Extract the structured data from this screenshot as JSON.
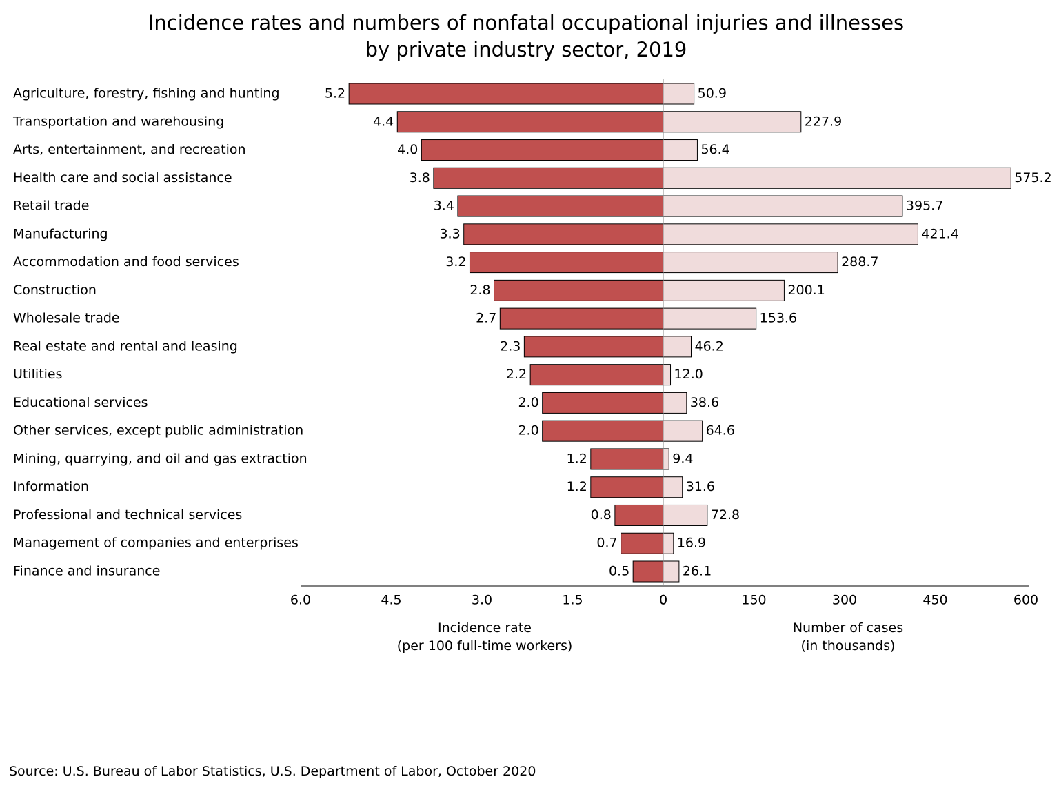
{
  "chart_data": {
    "type": "bar",
    "orientation": "horizontal",
    "title": "Incidence rates and numbers of nonfatal occupational injuries and illnesses\nby private industry sector, 2019",
    "categories": [
      "Agriculture, forestry, fishing and hunting",
      "Transportation and warehousing",
      "Arts, entertainment, and recreation",
      "Health care and social assistance",
      "Retail trade",
      "Manufacturing",
      "Accommodation and food services",
      "Construction",
      "Wholesale trade",
      "Real estate and rental and leasing",
      "Utilities",
      "Educational services",
      "Other services, except public administration",
      "Mining, quarrying, and oil and gas extraction",
      "Information",
      "Professional and technical services",
      "Management of companies and enterprises",
      "Finance and insurance"
    ],
    "series": [
      {
        "axis": "x",
        "color": "#c0504f",
        "values": [
          5.2,
          4.4,
          4.0,
          3.8,
          3.4,
          3.3,
          3.2,
          2.8,
          2.7,
          2.3,
          2.2,
          2.0,
          2.0,
          1.2,
          1.2,
          0.8,
          0.7,
          0.5
        ],
        "value_labels": [
          "5.2",
          "4.4",
          "4.0",
          "3.8",
          "3.4",
          "3.3",
          "3.2",
          "2.8",
          "2.7",
          "2.3",
          "2.2",
          "2.0",
          "2.0",
          "1.2",
          "1.2",
          "0.8",
          "0.7",
          "0.5"
        ]
      },
      {
        "axis": "x2",
        "color": "#f0dcdc",
        "values": [
          50.9,
          227.9,
          56.4,
          575.2,
          395.7,
          421.4,
          288.7,
          200.1,
          153.6,
          46.2,
          12.0,
          38.6,
          64.6,
          9.4,
          31.6,
          72.8,
          16.9,
          26.1
        ],
        "value_labels": [
          "50.9",
          "227.9",
          "56.4",
          "575.2",
          "395.7",
          "421.4",
          "288.7",
          "200.1",
          "153.6",
          "46.2",
          "12.0",
          "38.6",
          "64.6",
          "9.4",
          "31.6",
          "72.8",
          "16.9",
          "26.1"
        ]
      }
    ],
    "xlim": [
      6,
      0
    ],
    "xticks": [
      {
        "value": 6,
        "label": "6.0"
      },
      4.5,
      {
        "value": 3,
        "label": "3.0"
      },
      1.5,
      0
    ],
    "xlabel": "Incidence rate\n(per 100 full-time workers)",
    "x2lim": [
      0,
      600
    ],
    "x2ticks": [
      0,
      150,
      300,
      450,
      600
    ],
    "x2label": "Number of cases\n(in thousands)",
    "source": "Source:  U.S. Bureau of Labor Statistics, U.S. Department of Labor, October 2020"
  }
}
